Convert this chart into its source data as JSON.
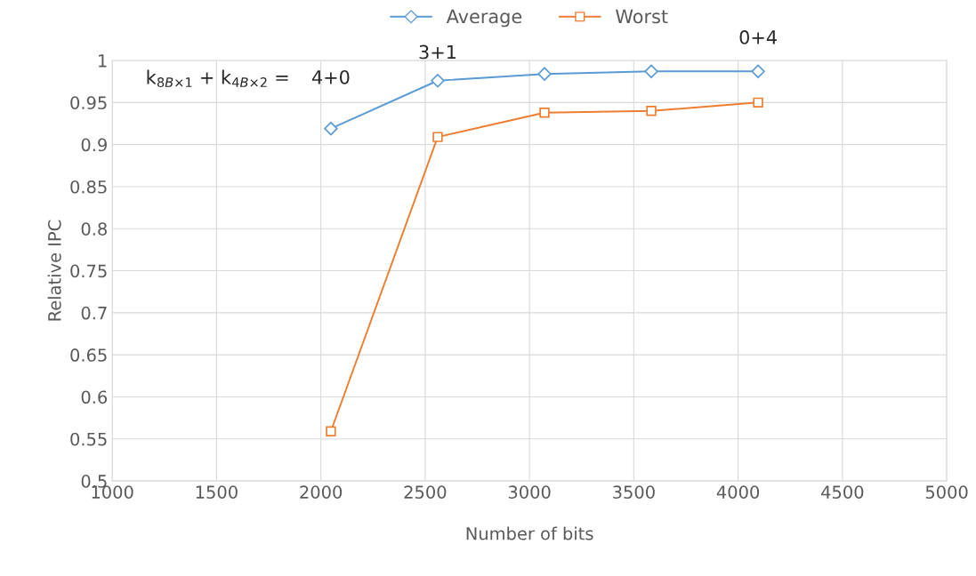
{
  "chart_data": {
    "type": "line",
    "xlabel": "Number of bits",
    "ylabel": "Relative IPC",
    "x": [
      2048,
      2560,
      3072,
      3584,
      4096
    ],
    "series": [
      {
        "name": "Average",
        "color": "#5b9bd5",
        "marker": "diamond",
        "values": [
          0.919,
          0.976,
          0.984,
          0.987,
          0.987
        ]
      },
      {
        "name": "Worst",
        "color": "#ed7d31",
        "marker": "square",
        "values": [
          0.559,
          0.909,
          0.938,
          0.94,
          0.95
        ]
      }
    ],
    "xlim": [
      1000,
      5000
    ],
    "xticks": [
      1000,
      1500,
      2000,
      2500,
      3000,
      3500,
      4000,
      4500,
      5000
    ],
    "ylim": [
      0.5,
      1
    ],
    "yticks": [
      0.5,
      0.55,
      0.6,
      0.65,
      0.7,
      0.75,
      0.8,
      0.85,
      0.9,
      0.95,
      1
    ],
    "annotations": [
      "k$_{8B×1}$ + k$_{4B×2}$ =",
      "4+0",
      "3+1",
      "0+4"
    ],
    "grid": true,
    "legend": "top",
    "line_style": "solid"
  }
}
